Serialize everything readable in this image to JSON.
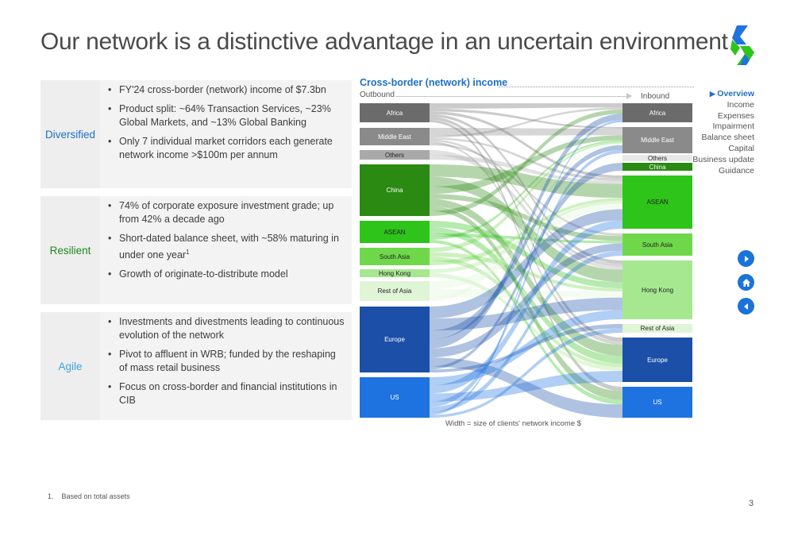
{
  "title": "Our network is a distinctive advantage in an uncertain environment",
  "rows": [
    {
      "label": "Diversified",
      "color": "#1f6fc5",
      "bullets": [
        "FY'24 cross-border (network) income of $7.3bn",
        "Product split: ~64% Transaction Services, ~23% Global Markets, and ~13% Global Banking",
        "Only 7 individual market corridors each generate network income >$100m per annum"
      ]
    },
    {
      "label": "Resilient",
      "color": "#1e8a1e",
      "bullets": [
        "74% of corporate exposure investment grade; up from 42% a decade ago",
        "Short-dated balance sheet, with ~58% maturing in under one year",
        "Growth of originate-to-distribute model"
      ]
    },
    {
      "label": "Agile",
      "color": "#3ba3e0",
      "bullets": [
        "Investments and divestments leading to continuous evolution of the network",
        "Pivot to affluent in WRB; funded by the reshaping of mass retail business",
        "Focus on cross-border and financial institutions in CIB"
      ]
    }
  ],
  "footnote_marker": "1",
  "chart": {
    "title": "Cross-border (network) income",
    "outbound_label": "Outbound",
    "inbound_label": "Inbound",
    "caption": "Width = size of clients' network income $"
  },
  "chart_data": {
    "type": "sankey",
    "outbound": [
      {
        "name": "Africa",
        "color": "#6b6b6b"
      },
      {
        "name": "Middle East",
        "color": "#8a8a8a"
      },
      {
        "name": "Others",
        "color": "#a9a9a9"
      },
      {
        "name": "China",
        "color": "#2a8a12"
      },
      {
        "name": "ASEAN",
        "color": "#2ec41a"
      },
      {
        "name": "South Asia",
        "color": "#6fd84a"
      },
      {
        "name": "Hong Kong",
        "color": "#a6e890"
      },
      {
        "name": "Rest of Asia",
        "color": "#dff5d6"
      },
      {
        "name": "Europe",
        "color": "#1b4fa8"
      },
      {
        "name": "US",
        "color": "#1f73e0"
      }
    ],
    "inbound": [
      {
        "name": "Africa",
        "color": "#6b6b6b"
      },
      {
        "name": "Middle East",
        "color": "#8a8a8a"
      },
      {
        "name": "Others",
        "color": "#e8e8e8"
      },
      {
        "name": "China",
        "color": "#2a8a12"
      },
      {
        "name": "ASEAN",
        "color": "#2ec41a"
      },
      {
        "name": "South Asia",
        "color": "#6fd84a"
      },
      {
        "name": "Hong Kong",
        "color": "#a6e890"
      },
      {
        "name": "Rest of Asia",
        "color": "#dff5d6"
      },
      {
        "name": "Europe",
        "color": "#1b4fa8"
      },
      {
        "name": "US",
        "color": "#1f73e0"
      }
    ]
  },
  "menu": {
    "active": "Overview",
    "items": [
      "Income",
      "Expenses",
      "Impairment",
      "Balance sheet",
      "Capital",
      "Business update",
      "Guidance"
    ]
  },
  "nav_icons": [
    "next-icon",
    "home-icon",
    "back-icon"
  ],
  "footnote": {
    "number": "1.",
    "text": "Based on total assets"
  },
  "page_number": "3"
}
